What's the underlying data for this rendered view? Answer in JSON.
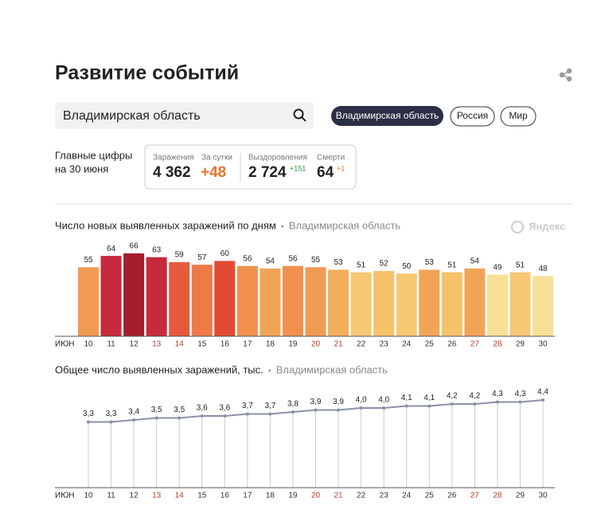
{
  "header": {
    "title": "Развитие событий"
  },
  "search": {
    "value": "Владимирская область"
  },
  "tabs": [
    "Владимирская область",
    "Россия",
    "Мир"
  ],
  "stats": {
    "caption_line1": "Главные цифры",
    "caption_line2": "на 30 июня",
    "items": [
      {
        "label": "Заражения",
        "value": "4 362"
      },
      {
        "label": "За сутки",
        "value": "+48"
      },
      {
        "label": "Выздоровления",
        "value": "2 724",
        "delta": "+151"
      },
      {
        "label": "Смерти",
        "value": "64",
        "delta": "+1"
      }
    ]
  },
  "watermark": "Яндекс",
  "chart_data": [
    {
      "type": "bar",
      "title": "Число новых выявленных заражений по дням",
      "subtitle": "Владимирская область",
      "x_label": "ИЮН",
      "categories": [
        "10",
        "11",
        "12",
        "13",
        "14",
        "15",
        "16",
        "17",
        "18",
        "19",
        "20",
        "21",
        "22",
        "23",
        "24",
        "25",
        "26",
        "27",
        "28",
        "29",
        "30"
      ],
      "values": [
        55,
        64,
        66,
        63,
        59,
        57,
        60,
        56,
        54,
        56,
        55,
        53,
        51,
        52,
        50,
        53,
        51,
        54,
        49,
        51,
        48
      ],
      "colors": [
        "#f19a52",
        "#c62a3c",
        "#a31e2e",
        "#c62a3c",
        "#e65a3c",
        "#ee7a48",
        "#e24a34",
        "#f0904c",
        "#f2a456",
        "#f0904c",
        "#f19a52",
        "#f3ae5c",
        "#f6c874",
        "#f5c26a",
        "#f6c874",
        "#f2a456",
        "#f5c26a",
        "#f2a456",
        "#f8e096",
        "#f6c874",
        "#f8e096"
      ],
      "category_colors": [
        "#333",
        "#333",
        "#333",
        "#c0392b",
        "#c0392b",
        "#333",
        "#333",
        "#333",
        "#333",
        "#333",
        "#c0392b",
        "#c0392b",
        "#333",
        "#333",
        "#333",
        "#333",
        "#333",
        "#c0392b",
        "#c0392b",
        "#333",
        "#333"
      ]
    },
    {
      "type": "line",
      "title": "Общее число выявленных заражений, тыс.",
      "subtitle": "Владимирская область",
      "x_label": "ИЮН",
      "color": "#8a90a8",
      "categories": [
        "10",
        "11",
        "12",
        "13",
        "14",
        "15",
        "16",
        "17",
        "18",
        "19",
        "20",
        "21",
        "22",
        "23",
        "24",
        "25",
        "26",
        "27",
        "28",
        "29",
        "30"
      ],
      "values": [
        3.3,
        3.3,
        3.4,
        3.5,
        3.5,
        3.6,
        3.6,
        3.7,
        3.7,
        3.8,
        3.9,
        3.9,
        4.0,
        4.0,
        4.1,
        4.1,
        4.2,
        4.2,
        4.3,
        4.3,
        4.4
      ],
      "value_labels": [
        "3,3",
        "3,3",
        "3,4",
        "3,5",
        "3,5",
        "3,6",
        "3,6",
        "3,7",
        "3,7",
        "3,8",
        "3,9",
        "3,9",
        "4,0",
        "4,0",
        "4,1",
        "4,1",
        "4,2",
        "4,2",
        "4,3",
        "4,3",
        "4,4"
      ],
      "category_colors": [
        "#333",
        "#333",
        "#333",
        "#c0392b",
        "#c0392b",
        "#333",
        "#333",
        "#333",
        "#333",
        "#333",
        "#c0392b",
        "#c0392b",
        "#333",
        "#333",
        "#333",
        "#333",
        "#333",
        "#c0392b",
        "#c0392b",
        "#333",
        "#333"
      ]
    }
  ]
}
